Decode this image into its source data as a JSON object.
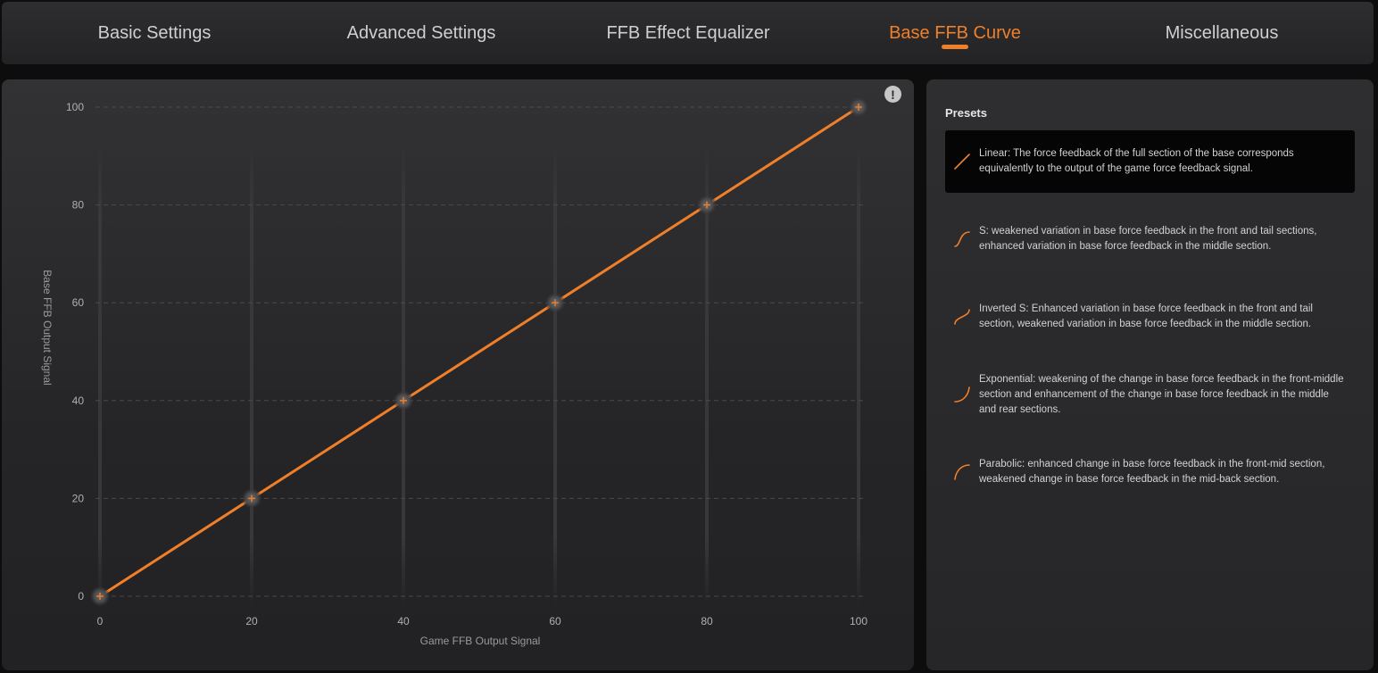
{
  "tabs": [
    {
      "label": "Basic Settings",
      "active": false
    },
    {
      "label": "Advanced Settings",
      "active": false
    },
    {
      "label": "FFB Effect Equalizer",
      "active": false
    },
    {
      "label": "Base FFB Curve",
      "active": true
    },
    {
      "label": "Miscellaneous",
      "active": false
    }
  ],
  "colors": {
    "accent": "#f07f2a",
    "panel": "#2a2a2c",
    "background": "#0d0d0e"
  },
  "info_button": {
    "label": "!"
  },
  "chart_data": {
    "type": "line",
    "xlabel": "Game FFB Output Signal",
    "ylabel": "Base FFB Output Signal",
    "xlim": [
      0,
      100
    ],
    "ylim": [
      0,
      100
    ],
    "x_ticks": [
      0,
      20,
      40,
      60,
      80,
      100
    ],
    "y_ticks": [
      0,
      20,
      40,
      60,
      80,
      100
    ],
    "grid": true,
    "series": [
      {
        "x": [
          0,
          20,
          40,
          60,
          80,
          100
        ],
        "y": [
          0,
          20,
          40,
          60,
          80,
          100
        ],
        "color": "#f07f2a"
      }
    ]
  },
  "presets": {
    "title": "Presets",
    "items": [
      {
        "name": "linear",
        "text": "Linear: The force feedback of the full section of the base corresponds equivalently to the output of the game force feedback signal.",
        "selected": true,
        "icon": "linear-curve-icon"
      },
      {
        "name": "s",
        "text": "S: weakened variation in base force feedback in the front and tail sections, enhanced variation in base force feedback in the middle section.",
        "selected": false,
        "icon": "s-curve-icon"
      },
      {
        "name": "inverted-s",
        "text": "Inverted S: Enhanced variation in base force feedback in the front and tail section, weakened variation in base force feedback in the middle section.",
        "selected": false,
        "icon": "inverted-s-curve-icon"
      },
      {
        "name": "exponential",
        "text": "Exponential: weakening of the change in base force feedback in the front-middle section and enhancement of the change in base force feedback in the middle and rear sections.",
        "selected": false,
        "icon": "exponential-curve-icon"
      },
      {
        "name": "parabolic",
        "text": "Parabolic: enhanced change in base force feedback in the front-mid section, weakened change in base force feedback in the mid-back section.",
        "selected": false,
        "icon": "parabolic-curve-icon"
      }
    ]
  }
}
